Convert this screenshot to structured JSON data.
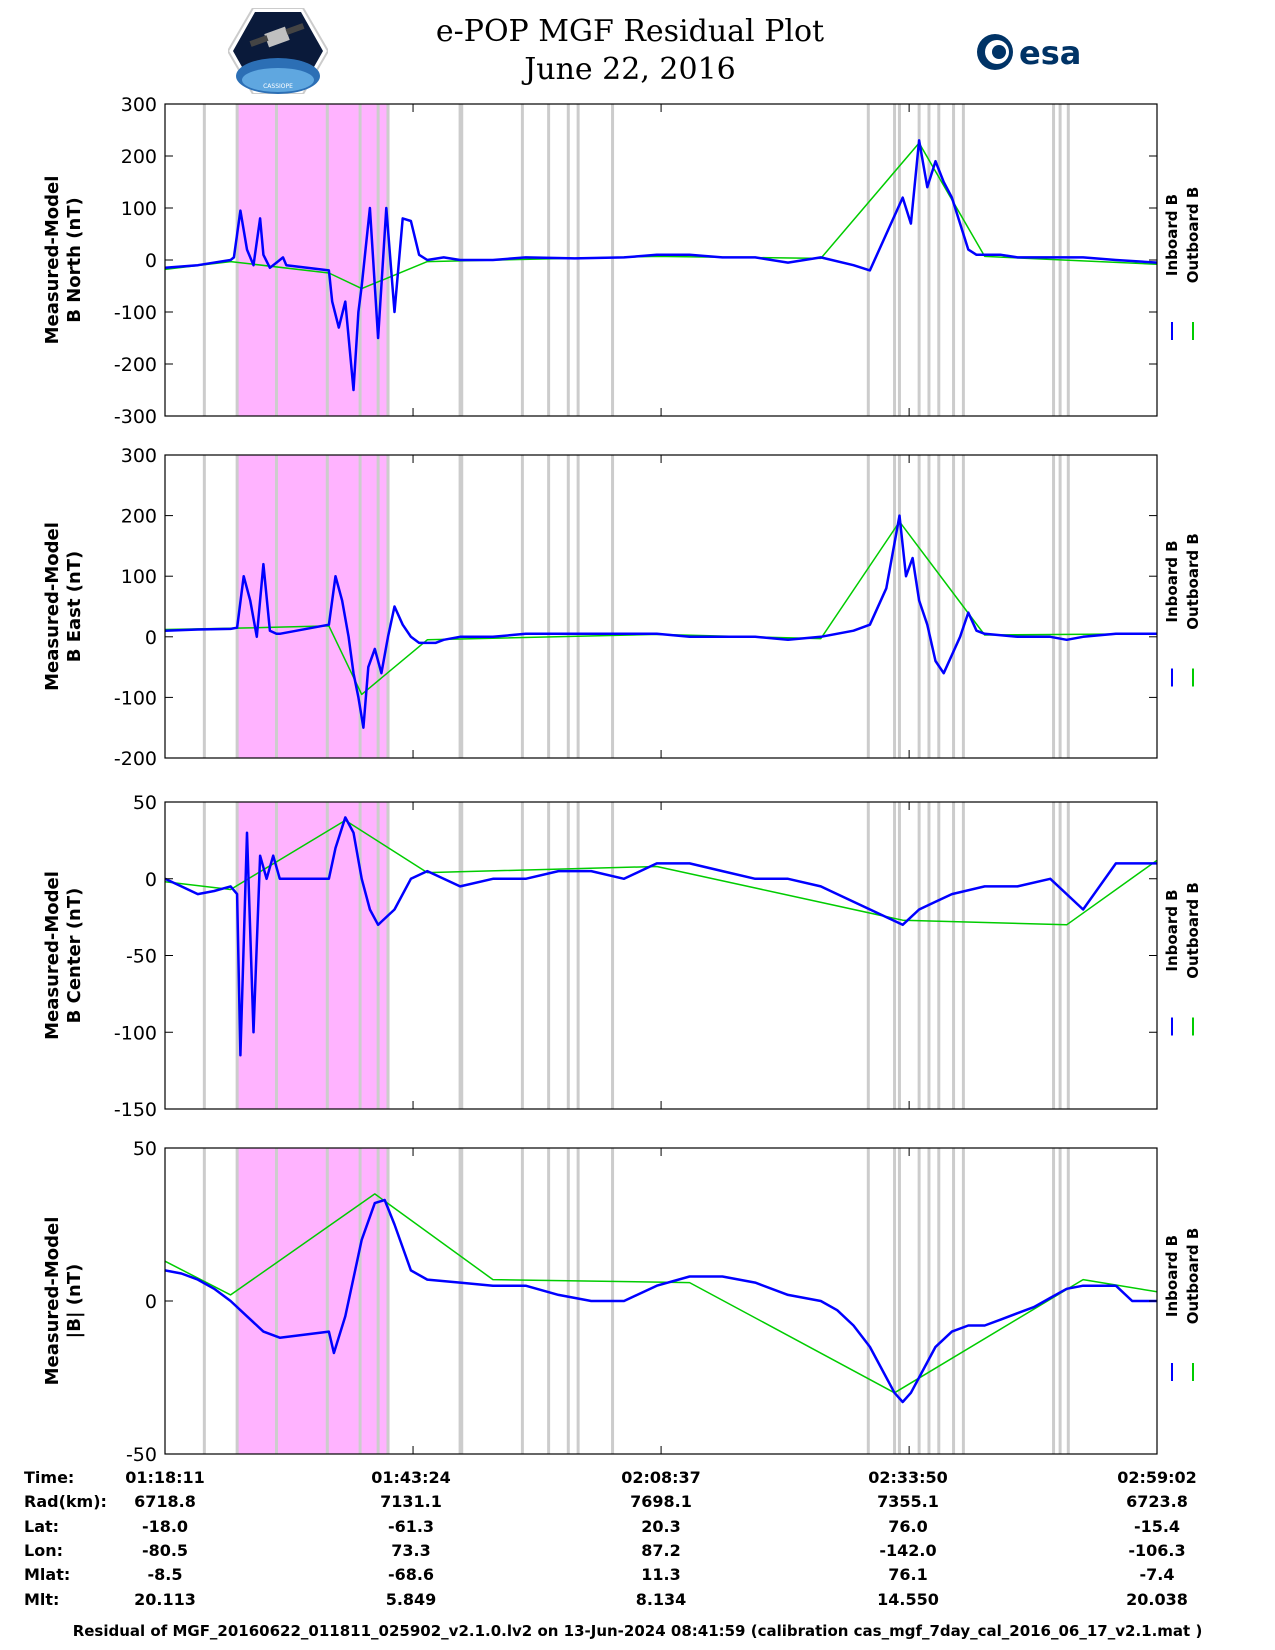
{
  "header": {
    "title_line1": "e-POP MGF Residual Plot",
    "title_line2": "June 22, 2016",
    "logo_left_text": "CASSIOPE",
    "logo_right_text": "esa"
  },
  "colors": {
    "inboard": "#0000ff",
    "outboard": "#00cc00",
    "shade_pink": "#ffb3ff",
    "shade_gray": "#cccccc",
    "axis": "#000000"
  },
  "chart_data": [
    {
      "type": "line",
      "id": "north",
      "ylabel_line1": "Measured-Model",
      "ylabel_line2": "B North (nT)",
      "ylim": [
        -300,
        300
      ],
      "yticks": [
        300,
        200,
        100,
        0,
        -100,
        -200,
        -300
      ],
      "xlim": [
        0,
        6051
      ],
      "legend": [
        "Inboard B",
        "Outboard B"
      ],
      "series": [
        {
          "name": "Inboard B",
          "x": [
            0,
            200,
            400,
            420,
            460,
            500,
            540,
            580,
            600,
            640,
            680,
            700,
            720,
            740,
            1000,
            1020,
            1060,
            1100,
            1150,
            1180,
            1200,
            1250,
            1300,
            1350,
            1400,
            1450,
            1500,
            1550,
            1600,
            1700,
            1800,
            2000,
            2200,
            2500,
            2800,
            3000,
            3200,
            3400,
            3600,
            3800,
            4000,
            4200,
            4300,
            4400,
            4500,
            4550,
            4600,
            4650,
            4700,
            4750,
            4800,
            4850,
            4900,
            4950,
            5000,
            5100,
            5200,
            5400,
            5600,
            5800,
            6051
          ],
          "values": [
            -15,
            -10,
            0,
            5,
            95,
            20,
            -10,
            80,
            10,
            -15,
            -5,
            0,
            5,
            -10,
            -20,
            -80,
            -130,
            -80,
            -250,
            -100,
            -50,
            100,
            -150,
            100,
            -100,
            80,
            75,
            10,
            0,
            5,
            0,
            0,
            5,
            3,
            5,
            10,
            10,
            5,
            5,
            -5,
            5,
            -10,
            -20,
            50,
            120,
            70,
            230,
            140,
            190,
            150,
            120,
            70,
            20,
            10,
            10,
            10,
            5,
            5,
            5,
            0,
            -5
          ]
        },
        {
          "name": "Outboard B",
          "x": [
            0,
            400,
            1000,
            1200,
            1600,
            3000,
            4000,
            4600,
            5000,
            6051
          ],
          "values": [
            -18,
            -3,
            -25,
            -55,
            -3,
            7,
            3,
            225,
            7,
            -8
          ]
        }
      ]
    },
    {
      "type": "line",
      "id": "east",
      "ylabel_line1": "Measured-Model",
      "ylabel_line2": "B East (nT)",
      "ylim": [
        -200,
        300
      ],
      "yticks": [
        300,
        200,
        100,
        0,
        -100,
        -200
      ],
      "xlim": [
        0,
        6051
      ],
      "legend": [
        "Inboard B",
        "Outboard B"
      ],
      "series": [
        {
          "name": "Inboard B",
          "x": [
            0,
            200,
            400,
            440,
            480,
            520,
            560,
            600,
            640,
            680,
            700,
            1000,
            1040,
            1080,
            1120,
            1150,
            1180,
            1210,
            1240,
            1280,
            1320,
            1360,
            1400,
            1450,
            1500,
            1550,
            1650,
            1700,
            1800,
            2000,
            2200,
            2400,
            2800,
            3000,
            3200,
            3400,
            3600,
            3800,
            4000,
            4200,
            4300,
            4400,
            4480,
            4520,
            4560,
            4600,
            4650,
            4700,
            4750,
            4800,
            4850,
            4900,
            4950,
            5000,
            5200,
            5400,
            5500,
            5600,
            5800,
            6051
          ],
          "values": [
            10,
            12,
            13,
            15,
            100,
            60,
            0,
            120,
            10,
            5,
            5,
            20,
            100,
            60,
            0,
            -60,
            -100,
            -150,
            -50,
            -20,
            -60,
            0,
            50,
            20,
            0,
            -10,
            -10,
            -5,
            0,
            0,
            5,
            5,
            5,
            5,
            0,
            0,
            0,
            -5,
            0,
            10,
            20,
            80,
            200,
            100,
            130,
            60,
            20,
            -40,
            -60,
            -30,
            0,
            40,
            10,
            5,
            0,
            0,
            -5,
            0,
            5,
            5
          ]
        },
        {
          "name": "Outboard B",
          "x": [
            0,
            400,
            1000,
            1200,
            1600,
            3000,
            4000,
            4480,
            5000,
            6051
          ],
          "values": [
            12,
            14,
            18,
            -95,
            -5,
            4,
            -3,
            190,
            3,
            5
          ]
        }
      ]
    },
    {
      "type": "line",
      "id": "center",
      "ylabel_line1": "Measured-Model",
      "ylabel_line2": "B Center (nT)",
      "ylim": [
        -150,
        50
      ],
      "yticks": [
        50,
        0,
        -50,
        -100,
        -150
      ],
      "xlim": [
        0,
        6051
      ],
      "legend": [
        "Inboard B",
        "Outboard B"
      ],
      "series": [
        {
          "name": "Inboard B",
          "x": [
            0,
            100,
            200,
            300,
            400,
            440,
            460,
            500,
            540,
            580,
            620,
            660,
            700,
            1000,
            1040,
            1100,
            1150,
            1200,
            1250,
            1300,
            1400,
            1500,
            1600,
            1800,
            2000,
            2200,
            2400,
            2600,
            2800,
            3000,
            3200,
            3400,
            3600,
            3800,
            4000,
            4200,
            4400,
            4500,
            4600,
            4700,
            4800,
            5000,
            5200,
            5400,
            5600,
            5800,
            6051
          ],
          "values": [
            0,
            -5,
            -10,
            -8,
            -5,
            -10,
            -115,
            30,
            -100,
            15,
            0,
            15,
            0,
            0,
            20,
            40,
            30,
            0,
            -20,
            -30,
            -20,
            0,
            5,
            -5,
            0,
            0,
            5,
            5,
            0,
            10,
            10,
            5,
            0,
            0,
            -5,
            -15,
            -25,
            -30,
            -20,
            -15,
            -10,
            -5,
            -5,
            0,
            -20,
            10,
            10
          ]
        },
        {
          "name": "Outboard B",
          "x": [
            0,
            400,
            1100,
            1600,
            3000,
            4500,
            5500,
            6051
          ],
          "values": [
            -2,
            -7,
            38,
            4,
            8,
            -27,
            -30,
            12
          ]
        }
      ]
    },
    {
      "type": "line",
      "id": "magnitude",
      "ylabel_line1": "Measured-Model",
      "ylabel_line2": "|B| (nT)",
      "ylim": [
        -50,
        50
      ],
      "yticks": [
        50,
        0,
        -50
      ],
      "xlim": [
        0,
        6051
      ],
      "legend": [
        "Inboard B",
        "Outboard B"
      ],
      "series": [
        {
          "name": "Inboard B",
          "x": [
            0,
            100,
            200,
            300,
            400,
            500,
            600,
            700,
            1000,
            1030,
            1100,
            1200,
            1280,
            1340,
            1400,
            1500,
            1600,
            1800,
            2000,
            2200,
            2400,
            2600,
            2800,
            3000,
            3200,
            3400,
            3600,
            3800,
            4000,
            4100,
            4200,
            4300,
            4400,
            4450,
            4500,
            4550,
            4600,
            4700,
            4800,
            4900,
            5000,
            5100,
            5200,
            5300,
            5400,
            5500,
            5600,
            5700,
            5800,
            5900,
            6051
          ],
          "values": [
            10,
            9,
            7,
            4,
            0,
            -5,
            -10,
            -12,
            -10,
            -17,
            -5,
            20,
            32,
            33,
            25,
            10,
            7,
            6,
            5,
            5,
            2,
            0,
            0,
            5,
            8,
            8,
            6,
            2,
            0,
            -3,
            -8,
            -15,
            -25,
            -30,
            -33,
            -30,
            -25,
            -15,
            -10,
            -8,
            -8,
            -6,
            -4,
            -2,
            1,
            4,
            5,
            5,
            5,
            0,
            0
          ]
        },
        {
          "name": "Outboard B",
          "x": [
            0,
            400,
            1280,
            2000,
            3200,
            4450,
            5600,
            6051
          ],
          "values": [
            13,
            2,
            35,
            7,
            6,
            -30,
            7,
            3
          ]
        }
      ]
    }
  ],
  "x_axis": {
    "tick_positions": [
      0,
      1513,
      3026,
      4539,
      6051
    ],
    "ephemeris_rows": [
      {
        "label": "Time:",
        "values": [
          "01:18:11",
          "01:43:24",
          "02:08:37",
          "02:33:50",
          "02:59:02"
        ]
      },
      {
        "label": "Rad(km):",
        "values": [
          "6718.8",
          "7131.1",
          "7698.1",
          "7355.1",
          "6723.8"
        ]
      },
      {
        "label": "Lat:",
        "values": [
          "-18.0",
          "-61.3",
          "20.3",
          "76.0",
          "-15.4"
        ]
      },
      {
        "label": "Lon:",
        "values": [
          "-80.5",
          "73.3",
          "87.2",
          "-142.0",
          "-106.3"
        ]
      },
      {
        "label": "Mlat:",
        "values": [
          "-8.5",
          "-68.6",
          "11.3",
          "76.1",
          "-7.4"
        ]
      },
      {
        "label": "Mlt:",
        "values": [
          "20.113",
          "5.849",
          "8.134",
          "14.550",
          "20.038"
        ]
      }
    ]
  },
  "shading": {
    "pink_intervals": [
      [
        440,
        1370
      ]
    ],
    "gray_lines": [
      240,
      440,
      680,
      990,
      1190,
      1300,
      1360,
      1800,
      1810,
      2180,
      2340,
      2460,
      2520,
      2730,
      4290,
      4450,
      4480,
      4600,
      4660,
      4720,
      4810,
      4870,
      5420,
      5460,
      5510
    ]
  },
  "footer": {
    "text": "Residual of MGF_20160622_011811_025902_v2.1.0.lv2 on 13-Jun-2024 08:41:59 (calibration cas_mgf_7day_cal_2016_06_17_v2.1.mat )"
  }
}
